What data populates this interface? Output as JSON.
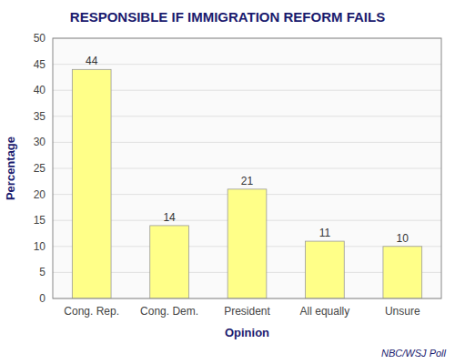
{
  "chart_data": {
    "type": "bar",
    "title": "RESPONSIBLE IF IMMIGRATION REFORM FAILS",
    "xlabel": "Opinion",
    "ylabel": "Percentage",
    "annotation": "NBC/WSJ Poll",
    "categories": [
      "Cong. Rep.",
      "Cong. Dem.",
      "President",
      "All equally",
      "Unsure"
    ],
    "values": [
      44,
      14,
      21,
      11,
      10
    ],
    "color": "#ffff88",
    "ylim": [
      0,
      50
    ],
    "yticks": [
      0,
      5,
      10,
      15,
      20,
      25,
      30,
      35,
      40,
      45,
      50
    ],
    "grid": true,
    "data_labels": true
  }
}
